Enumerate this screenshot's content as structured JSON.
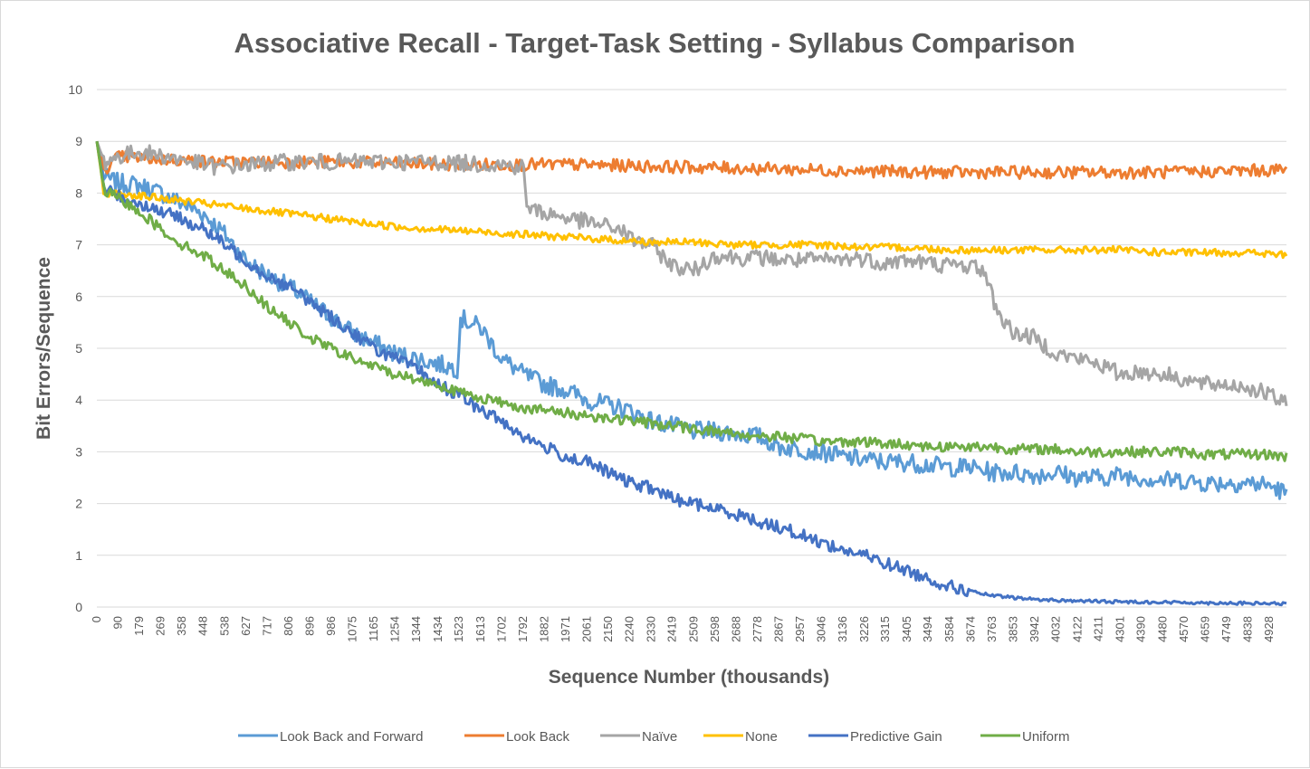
{
  "chart_data": {
    "type": "line",
    "title": "Associative Recall - Target-Task Setting - Syllabus Comparison",
    "xlabel": "Sequence Number (thousands)",
    "ylabel": "Bit Errors/Sequence",
    "ylim": [
      0,
      10
    ],
    "yticks": [
      0,
      1,
      2,
      3,
      4,
      5,
      6,
      7,
      8,
      9,
      10
    ],
    "xlim": [
      0,
      5000
    ],
    "xticks": [
      0,
      90,
      179,
      269,
      358,
      448,
      538,
      627,
      717,
      806,
      896,
      986,
      1075,
      1165,
      1254,
      1344,
      1434,
      1523,
      1613,
      1702,
      1792,
      1882,
      1971,
      2061,
      2150,
      2240,
      2330,
      2419,
      2509,
      2598,
      2688,
      2778,
      2867,
      2957,
      3046,
      3136,
      3226,
      3315,
      3405,
      3494,
      3584,
      3674,
      3763,
      3853,
      3942,
      4032,
      4122,
      4211,
      4301,
      4390,
      4480,
      4570,
      4659,
      4749,
      4838,
      4928
    ],
    "grid": true,
    "legend_position": "bottom",
    "series": [
      {
        "name": "Look Back and Forward",
        "color": "#5B9BD5",
        "x": [
          0,
          30,
          90,
          179,
          269,
          358,
          448,
          538,
          627,
          717,
          806,
          896,
          986,
          1075,
          1165,
          1254,
          1344,
          1434,
          1520,
          1523,
          1613,
          1702,
          1792,
          1882,
          1971,
          2061,
          2150,
          2240,
          2330,
          2419,
          2509,
          2598,
          2688,
          2778,
          2867,
          2957,
          3046,
          3136,
          3226,
          3315,
          3405,
          3494,
          3584,
          3674,
          3763,
          3853,
          3942,
          4032,
          4122,
          4211,
          4301,
          4390,
          4480,
          4570,
          4659,
          4749,
          4838,
          4928,
          5000
        ],
        "y": [
          9.0,
          8.3,
          8.2,
          8.15,
          8.0,
          7.8,
          7.6,
          7.2,
          6.7,
          6.4,
          6.2,
          5.9,
          5.6,
          5.3,
          5.1,
          4.9,
          4.8,
          4.7,
          4.6,
          5.6,
          5.4,
          4.8,
          4.5,
          4.3,
          4.2,
          4.0,
          3.9,
          3.8,
          3.6,
          3.5,
          3.4,
          3.4,
          3.35,
          3.3,
          3.1,
          3.05,
          3.0,
          2.9,
          2.85,
          2.8,
          2.8,
          2.75,
          2.7,
          2.7,
          2.6,
          2.6,
          2.55,
          2.6,
          2.5,
          2.5,
          2.55,
          2.5,
          2.45,
          2.45,
          2.4,
          2.4,
          2.4,
          2.35,
          2.2
        ]
      },
      {
        "name": "Look Back",
        "color": "#ED7D31",
        "x": [
          0,
          30,
          90,
          500,
          1000,
          1500,
          2000,
          2500,
          3000,
          3500,
          4000,
          4500,
          5000
        ],
        "y": [
          9.0,
          8.45,
          8.7,
          8.6,
          8.6,
          8.55,
          8.55,
          8.5,
          8.45,
          8.4,
          8.4,
          8.4,
          8.45
        ]
      },
      {
        "name": "Naïve",
        "color": "#A5A5A5",
        "x": [
          0,
          30,
          90,
          179,
          300,
          500,
          800,
          1100,
          1400,
          1700,
          1792,
          1810,
          1900,
          2000,
          2100,
          2200,
          2250,
          2330,
          2419,
          2509,
          2598,
          2700,
          2800,
          2900,
          3000,
          3100,
          3200,
          3300,
          3400,
          3494,
          3584,
          3674,
          3730,
          3763,
          3800,
          3853,
          3942,
          4032,
          4122,
          4211,
          4301,
          4390,
          4480,
          4570,
          4659,
          4749,
          4838,
          4928,
          5000
        ],
        "y": [
          9.0,
          8.6,
          8.7,
          8.8,
          8.7,
          8.5,
          8.6,
          8.6,
          8.6,
          8.55,
          8.5,
          7.7,
          7.6,
          7.5,
          7.4,
          7.3,
          7.1,
          7.0,
          6.6,
          6.5,
          6.8,
          6.75,
          6.75,
          6.7,
          6.7,
          6.7,
          6.75,
          6.65,
          6.7,
          6.65,
          6.6,
          6.6,
          6.5,
          6.0,
          5.6,
          5.3,
          5.2,
          4.9,
          4.8,
          4.7,
          4.5,
          4.55,
          4.5,
          4.4,
          4.3,
          4.3,
          4.25,
          4.1,
          3.9
        ]
      },
      {
        "name": "None",
        "color": "#FFC000",
        "x": [
          0,
          30,
          90,
          179,
          358,
          538,
          717,
          896,
          1075,
          1254,
          1434,
          1613,
          1792,
          1971,
          2150,
          2330,
          2509,
          2688,
          2867,
          3046,
          3226,
          3405,
          3584,
          3763,
          3942,
          4122,
          4301,
          4480,
          4659,
          4838,
          5000
        ],
        "y": [
          9.0,
          8.0,
          8.0,
          7.95,
          7.85,
          7.75,
          7.65,
          7.55,
          7.45,
          7.35,
          7.3,
          7.25,
          7.2,
          7.15,
          7.1,
          7.05,
          7.05,
          7.0,
          7.0,
          7.0,
          6.95,
          6.95,
          6.9,
          6.9,
          6.9,
          6.9,
          6.9,
          6.85,
          6.85,
          6.85,
          6.8
        ]
      },
      {
        "name": "Predictive Gain",
        "color": "#4472C4",
        "x": [
          0,
          30,
          90,
          179,
          269,
          358,
          448,
          538,
          627,
          717,
          806,
          896,
          986,
          1075,
          1165,
          1254,
          1344,
          1434,
          1523,
          1613,
          1702,
          1792,
          1882,
          1971,
          2061,
          2150,
          2240,
          2330,
          2419,
          2509,
          2598,
          2688,
          2778,
          2867,
          2957,
          3046,
          3136,
          3226,
          3315,
          3405,
          3494,
          3584,
          3674,
          3763,
          3853,
          3942,
          4032,
          4122,
          4211,
          4301,
          4390,
          4480,
          4570,
          4659,
          4749,
          4838,
          4928,
          5000
        ],
        "y": [
          9.0,
          8.1,
          7.95,
          7.8,
          7.65,
          7.5,
          7.3,
          7.0,
          6.7,
          6.4,
          6.2,
          5.9,
          5.6,
          5.3,
          5.0,
          4.8,
          4.6,
          4.3,
          4.1,
          3.8,
          3.6,
          3.3,
          3.1,
          2.9,
          2.8,
          2.6,
          2.4,
          2.3,
          2.1,
          2.0,
          1.9,
          1.8,
          1.65,
          1.55,
          1.4,
          1.25,
          1.1,
          1.0,
          0.85,
          0.7,
          0.55,
          0.4,
          0.3,
          0.22,
          0.18,
          0.15,
          0.13,
          0.12,
          0.11,
          0.1,
          0.1,
          0.09,
          0.09,
          0.08,
          0.08,
          0.07,
          0.07,
          0.06
        ]
      },
      {
        "name": "Uniform",
        "color": "#70AD47",
        "x": [
          0,
          30,
          90,
          179,
          269,
          358,
          448,
          538,
          627,
          717,
          806,
          896,
          986,
          1075,
          1165,
          1254,
          1344,
          1434,
          1523,
          1613,
          1702,
          1792,
          1882,
          1971,
          2061,
          2150,
          2240,
          2330,
          2419,
          2509,
          2598,
          2688,
          2778,
          2867,
          2957,
          3046,
          3136,
          3226,
          3315,
          3405,
          3494,
          3584,
          3674,
          3763,
          3853,
          3942,
          4032,
          4122,
          4211,
          4301,
          4390,
          4480,
          4570,
          4659,
          4749,
          4838,
          4928,
          5000
        ],
        "y": [
          9.0,
          8.05,
          7.9,
          7.65,
          7.3,
          7.0,
          6.8,
          6.5,
          6.2,
          5.8,
          5.5,
          5.2,
          5.0,
          4.8,
          4.65,
          4.5,
          4.4,
          4.3,
          4.15,
          4.05,
          3.95,
          3.85,
          3.8,
          3.75,
          3.7,
          3.65,
          3.6,
          3.55,
          3.5,
          3.45,
          3.4,
          3.35,
          3.3,
          3.3,
          3.25,
          3.2,
          3.2,
          3.2,
          3.15,
          3.15,
          3.1,
          3.1,
          3.1,
          3.1,
          3.05,
          3.05,
          3.05,
          3.0,
          3.0,
          3.0,
          3.0,
          3.0,
          3.0,
          2.95,
          2.95,
          2.95,
          2.95,
          2.9
        ]
      }
    ]
  }
}
